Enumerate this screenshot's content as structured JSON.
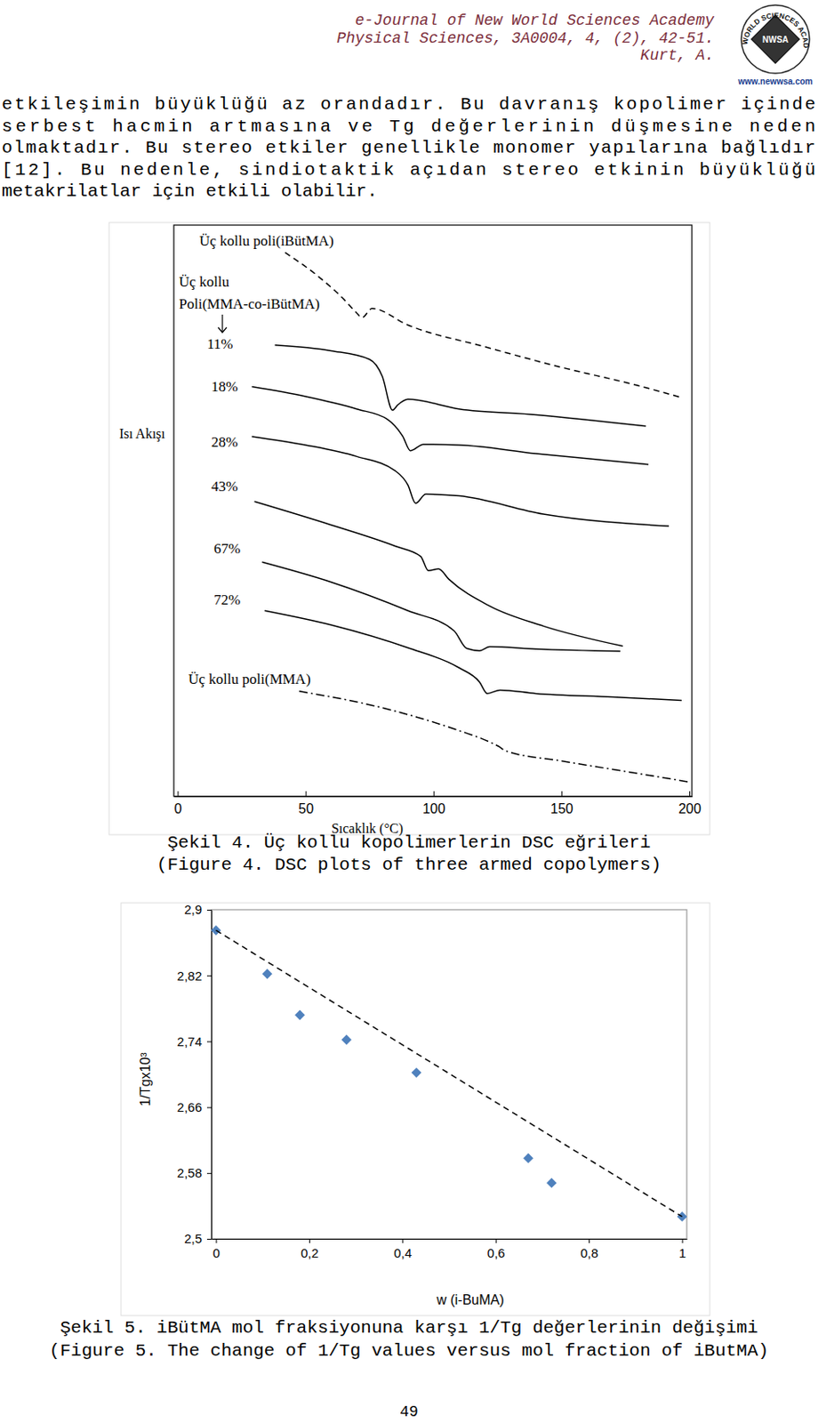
{
  "header": {
    "lines": [
      "e-Journal of New World Sciences Academy",
      "Physical Sciences, 3A0004, 4, (2), 42-51.",
      "Kurt, A."
    ]
  },
  "logo": {
    "arc_text": "NEW WORLD SCIENCES ACADEMY",
    "badge": "NWSA",
    "url": "www.newwsa.com"
  },
  "paragraph": [
    "etkileşimin büyüklüğü az orandadır. Bu davranış kopolimer içinde",
    "serbest hacmin artmasına ve Tg değerlerinin düşmesine neden",
    "olmaktadır. Bu stereo etkiler genellikle monomer yapılarına bağlıdır",
    "[12]. Bu nedenle, sindiotaktik açıdan stereo etkinin büyüklüğü",
    "metakrilatlar için etkili olabilir."
  ],
  "chart_data": [
    {
      "type": "line",
      "x_label": "Sıcaklık (°C)",
      "y_label": "Isı Akışı",
      "xlim": [
        -1.5,
        201
      ],
      "xticks": [
        0,
        50,
        100,
        150,
        200
      ],
      "ylim": [
        0,
        100
      ],
      "tick_labels": "x",
      "grid": false,
      "annotations": [
        {
          "text": [
            "Üç kollu",
            "Poli(MMA-co-iBütMA)"
          ]
        }
      ],
      "series": [
        {
          "name": "Üç kollu poli(iBütMA)",
          "color": "#000000",
          "line_style": "dashed",
          "x": [
            42,
            55,
            65,
            70,
            72,
            76,
            90,
            120,
            150,
            180,
            197
          ],
          "values": [
            95.2,
            91.0,
            87.0,
            84.6,
            83.8,
            85.4,
            82.5,
            78.7,
            75.1,
            71.9,
            69.8
          ]
        },
        {
          "name": "11%",
          "color": "#000000",
          "line_style": "solid",
          "x": [
            38,
            60,
            75,
            80,
            84,
            86,
            90,
            110,
            140,
            183
          ],
          "values": [
            79.0,
            78.0,
            76.5,
            73.5,
            67.6,
            68.5,
            69.5,
            67.8,
            66.8,
            64.8
          ]
        },
        {
          "name": "18%",
          "color": "#000000",
          "line_style": "solid",
          "x": [
            29,
            50,
            70,
            82,
            88,
            91,
            96,
            110,
            140,
            184
          ],
          "values": [
            71.7,
            70.0,
            67.8,
            66.0,
            63.0,
            60.5,
            61.6,
            61.5,
            60.0,
            58.1
          ]
        },
        {
          "name": "28%",
          "color": "#000000",
          "line_style": "solid",
          "x": [
            29,
            50,
            70,
            85,
            90,
            93,
            97,
            110,
            143,
            192
          ],
          "values": [
            63.0,
            61.5,
            59.5,
            57.0,
            54.5,
            51.3,
            52.9,
            52.6,
            49.4,
            47.3
          ]
        },
        {
          "name": "43%",
          "color": "#000000",
          "line_style": "solid",
          "x": [
            30,
            60,
            85,
            95,
            98,
            102,
            106,
            122,
            143,
            174
          ],
          "values": [
            51.6,
            47.5,
            43.8,
            42.0,
            39.5,
            39.8,
            38.0,
            33.3,
            29.8,
            26.3
          ]
        },
        {
          "name": "67%",
          "color": "#000000",
          "line_style": "solid",
          "x": [
            33,
            60,
            90,
            108,
            113,
            118,
            122,
            140,
            173
          ],
          "values": [
            41.0,
            37.5,
            32.5,
            29.0,
            25.9,
            25.5,
            26.2,
            25.8,
            25.4
          ]
        },
        {
          "name": "72%",
          "color": "#000000",
          "line_style": "solid",
          "x": [
            34,
            60,
            90,
            110,
            118,
            121,
            126,
            140,
            170,
            197
          ],
          "values": [
            32.5,
            30.0,
            26.0,
            22.5,
            20.0,
            18.0,
            18.6,
            18.0,
            17.4,
            16.8
          ]
        },
        {
          "name": "Üç kollu poli(MMA)",
          "color": "#000000",
          "line_style": "dashdot",
          "x": [
            47.5,
            80,
            110,
            122,
            126,
            128,
            150,
            180,
            200
          ],
          "values": [
            18.4,
            15.5,
            11.5,
            9.5,
            8.6,
            8.0,
            6.2,
            4.0,
            2.5
          ]
        }
      ]
    },
    {
      "type": "scatter",
      "x_label": "w (i-BuMA)",
      "y_label": "1/Tgx10³",
      "xlim": [
        -0.01,
        1.01
      ],
      "xticks": [
        0,
        {
          "value": 0.2,
          "label": "0,2"
        },
        {
          "value": 0.4,
          "label": "0,4"
        },
        {
          "value": 0.6,
          "label": "0,6"
        },
        {
          "value": 0.8,
          "label": "0,8"
        },
        1
      ],
      "ylim": [
        2.5,
        2.9
      ],
      "yticks": [
        {
          "value": 2.5,
          "label": "2,5"
        },
        {
          "value": 2.58,
          "label": "2,58"
        },
        {
          "value": 2.66,
          "label": "2,66"
        },
        {
          "value": 2.74,
          "label": "2,74"
        },
        {
          "value": 2.82,
          "label": "2,82"
        },
        {
          "value": 2.9,
          "label": "2,9"
        }
      ],
      "grid": false,
      "series": [
        {
          "type": "scatter",
          "marker": "diamond",
          "color": "#4f81bd",
          "x": [
            0,
            0.11,
            0.18,
            0.28,
            0.43,
            0.67,
            0.72,
            1
          ],
          "values": [
            2.875,
            2.822,
            2.772,
            2.742,
            2.702,
            2.598,
            2.568,
            2.527
          ]
        },
        {
          "type": "line",
          "line_style": "dashed",
          "color": "#000000",
          "x": [
            0,
            1
          ],
          "values": [
            2.875,
            2.527
          ]
        }
      ]
    }
  ],
  "captions": [
    [
      "Şekil 4. Üç kollu kopolimerlerin DSC eğrileri",
      "(Figure 4. DSC plots of three armed copolymers)"
    ],
    [
      "Şekil 5. iBütMA mol fraksiyonuna karşı 1/Tg değerlerinin değişimi",
      "(Figure 5. The change of 1/Tg values versus mol fraction of iButMA)"
    ]
  ],
  "page_number": "49"
}
